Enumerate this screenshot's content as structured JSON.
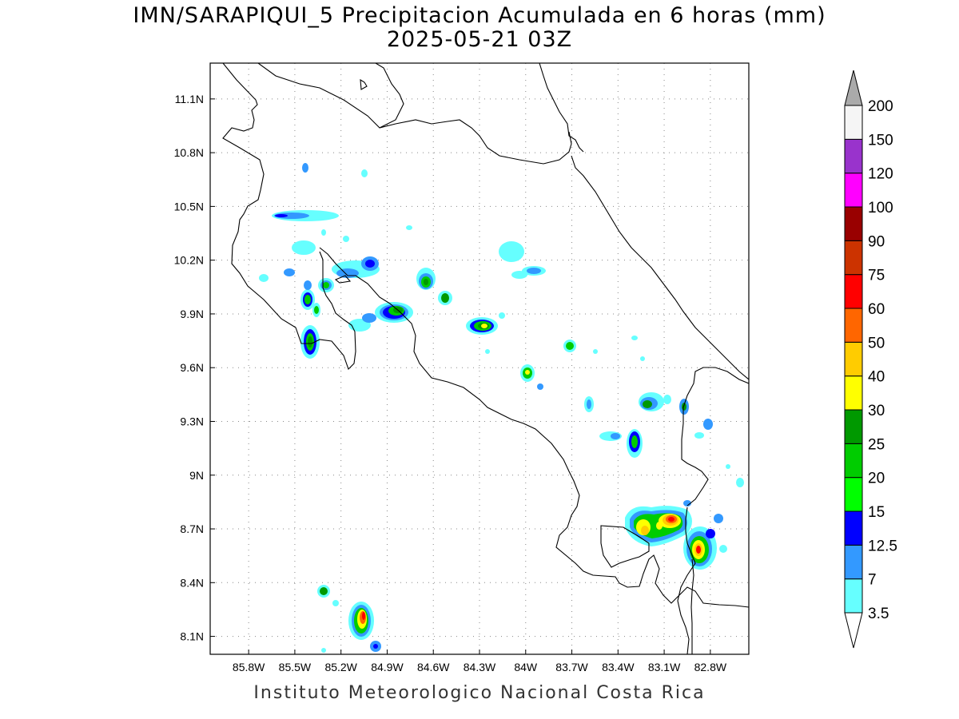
{
  "title": {
    "line1": "IMN/SARAPIQUI_5 Precipitacion Acumulada en 6 horas (mm)",
    "line2": "2025-05-21 03Z"
  },
  "credit": "Instituto Meteorologico Nacional Costa Rica",
  "map": {
    "lon_range": [
      -86.05,
      -82.55
    ],
    "lat_range": [
      8.0,
      11.3
    ],
    "lon_ticks": [
      "85.8W",
      "85.5W",
      "85.2W",
      "84.9W",
      "84.6W",
      "84.3W",
      "84W",
      "83.7W",
      "83.4W",
      "83.1W",
      "82.8W"
    ],
    "lon_values": [
      -85.8,
      -85.5,
      -85.2,
      -84.9,
      -84.6,
      -84.3,
      -84.0,
      -83.7,
      -83.4,
      -83.1,
      -82.8
    ],
    "lat_ticks": [
      "8.1N",
      "8.4N",
      "8.7N",
      "9N",
      "9.3N",
      "9.6N",
      "9.9N",
      "10.2N",
      "10.5N",
      "10.8N",
      "11.1N"
    ],
    "lat_values": [
      8.1,
      8.4,
      8.7,
      9.0,
      9.3,
      9.6,
      9.9,
      10.2,
      10.5,
      10.8,
      11.1
    ],
    "grid": "dotted"
  },
  "colorbar": {
    "labels": [
      "3.5",
      "7",
      "12.5",
      "15",
      "20",
      "25",
      "30",
      "40",
      "50",
      "60",
      "75",
      "90",
      "100",
      "120",
      "150",
      "200"
    ],
    "colors": [
      "#66ffff",
      "#3399ff",
      "#0000ff",
      "#00ff00",
      "#00cc00",
      "#009900",
      "#ffff00",
      "#ffcc00",
      "#ff6600",
      "#ff0000",
      "#cc3300",
      "#990000",
      "#ff00ff",
      "#9933cc",
      "#f5f5f5"
    ],
    "over_color": "#aaaaaa",
    "under_color": "#ffffff"
  }
}
